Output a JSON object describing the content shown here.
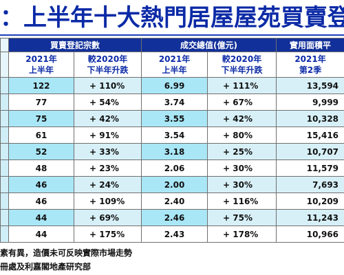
{
  "title": "：上半年十大熱門居屋屋苑買賣登記",
  "table": {
    "group_headers": [
      "買賣登記宗數",
      "成交總值(億元)",
      "實用面積平"
    ],
    "sub_headers": [
      {
        "line1": "2021年",
        "line2": "上半年"
      },
      {
        "line1": "較2020年",
        "line2": "下半年升跌"
      },
      {
        "line1": "2021年",
        "line2": "上半年"
      },
      {
        "line1": "較2020年",
        "line2": "下半年升跌"
      },
      {
        "line1": "2021年",
        "line2": "第2季"
      }
    ],
    "rows": [
      {
        "count": "122",
        "count_chg": "+ 110%",
        "value": "6.99",
        "value_chg": "+ 111%",
        "area": "13,594"
      },
      {
        "count": "77",
        "count_chg": "+ 54%",
        "value": "3.74",
        "value_chg": "+ 67%",
        "area": "9,999"
      },
      {
        "count": "75",
        "count_chg": "+ 42%",
        "value": "3.55",
        "value_chg": "+ 42%",
        "area": "10,328"
      },
      {
        "count": "61",
        "count_chg": "+ 91%",
        "value": "3.54",
        "value_chg": "+ 80%",
        "area": "15,416"
      },
      {
        "count": "52",
        "count_chg": "+ 33%",
        "value": "3.18",
        "value_chg": "+ 25%",
        "area": "10,707"
      },
      {
        "count": "48",
        "count_chg": "+ 23%",
        "value": "2.06",
        "value_chg": "+ 30%",
        "area": "11,579"
      },
      {
        "count": "46",
        "count_chg": "+ 24%",
        "value": "2.00",
        "value_chg": "+ 30%",
        "area": "7,693"
      },
      {
        "count": "46",
        "count_chg": "+ 109%",
        "value": "2.40",
        "value_chg": "+ 116%",
        "area": "10,209"
      },
      {
        "count": "44",
        "count_chg": "+ 69%",
        "value": "2.46",
        "value_chg": "+ 75%",
        "area": "11,243"
      },
      {
        "count": "44",
        "count_chg": "+ 175%",
        "value": "2.43",
        "value_chg": "+ 178%",
        "area": "10,966"
      }
    ]
  },
  "notes": [
    "素有異，造價未可反映實際市場走勢",
    "冊處及利嘉閣地產研究部"
  ]
}
